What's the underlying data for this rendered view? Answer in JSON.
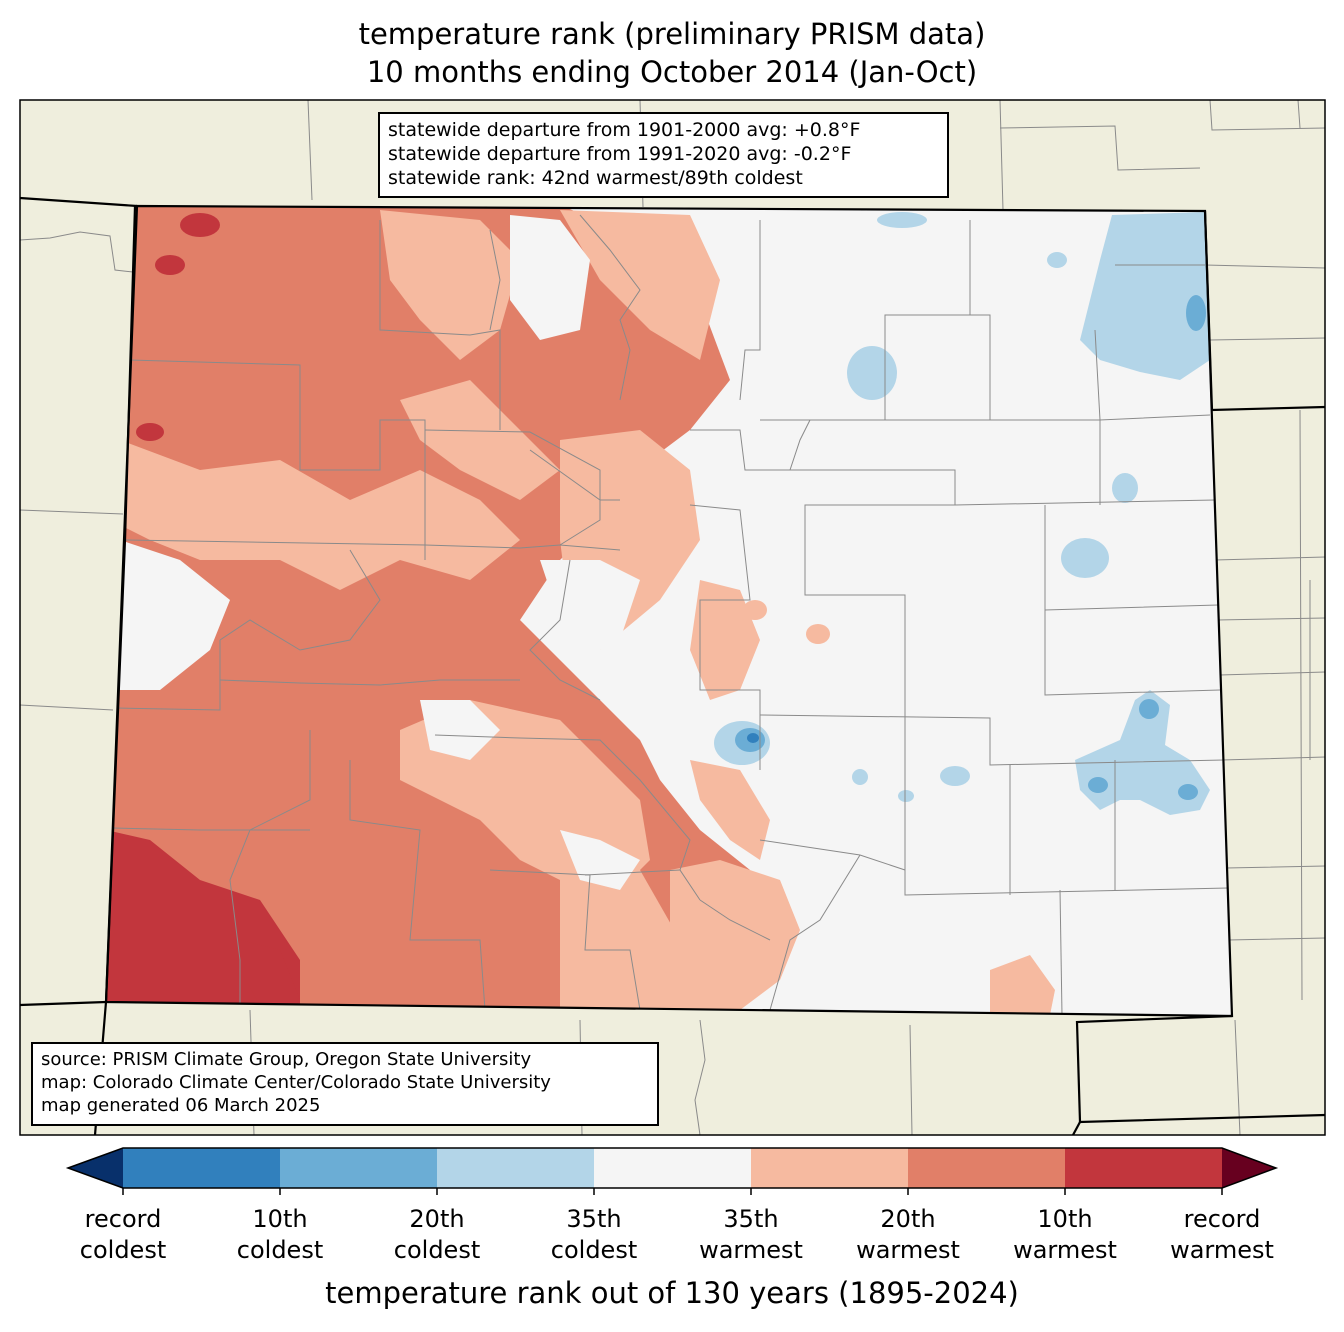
{
  "title": {
    "line1": "temperature rank (preliminary PRISM data)",
    "line2": "10 months ending October 2014 (Jan-Oct)"
  },
  "stats": {
    "line1": "statewide departure from 1901-2000 avg: +0.8°F",
    "line2": "statewide departure from 1991-2020 avg: -0.2°F",
    "line3": "statewide rank: 42nd warmest/89th coldest"
  },
  "source": {
    "line1": "source: PRISM Climate Group, Oregon State University",
    "line2": "map: Colorado Climate Center/Colorado State University",
    "line3": "map generated 06 March 2025"
  },
  "colorbar": {
    "colors": [
      "#08306b",
      "#3180bd",
      "#6badd5",
      "#b3d5e8",
      "#f5f5f5",
      "#f6baa0",
      "#e17f68",
      "#c2363d",
      "#67001f"
    ],
    "labels": [
      {
        "line1": "record",
        "line2": "coldest"
      },
      {
        "line1": "10th",
        "line2": "coldest"
      },
      {
        "line1": "20th",
        "line2": "coldest"
      },
      {
        "line1": "35th",
        "line2": "coldest"
      },
      {
        "line1": "35th",
        "line2": "warmest"
      },
      {
        "line1": "20th",
        "line2": "warmest"
      },
      {
        "line1": "10th",
        "line2": "warmest"
      },
      {
        "line1": "record",
        "line2": "warmest"
      }
    ],
    "title": "temperature rank out of 130 years (1895-2024)"
  },
  "map_colors": {
    "land": "#efeedd",
    "neutral": "#f5f5f5",
    "warm35": "#f6baa0",
    "warm20": "#e17f68",
    "warm10": "#c2363d",
    "cold35": "#b3d5e8",
    "cold20": "#6badd5",
    "cold10": "#3180bd"
  }
}
